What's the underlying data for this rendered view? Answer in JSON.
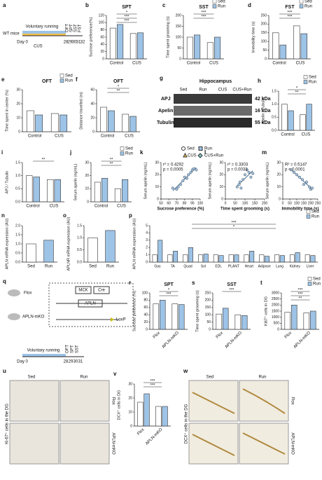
{
  "diagrams": {
    "a": {
      "panel": "a",
      "mice": "WT mice",
      "running": "Voluntary running",
      "day0": "Day 0",
      "cus": "CUS",
      "days": [
        "28",
        "29",
        "30",
        "31",
        "32"
      ],
      "tests": [
        "OFT",
        "SPT",
        "SST",
        "FST"
      ]
    },
    "g": {
      "panel": "g",
      "title": "Hippocampus",
      "groups": [
        "Sed",
        "Run",
        "CUS",
        "CUS+Run"
      ],
      "proteins": [
        "APJ",
        "Apelin",
        "Tubulin"
      ],
      "sizes": [
        "42 kDa",
        "16 kDa",
        "55 kDa"
      ]
    },
    "legend_klm": {
      "items": [
        "Sed",
        "Run",
        "CUS",
        "CUS+Run"
      ]
    },
    "q": {
      "panel": "q",
      "flox": "Flox",
      "ko": "APLN-mKO",
      "mck": "MCK",
      "cre": "Cre",
      "apln": "APLN",
      "loxp": "LoxP",
      "day0": "Day 0",
      "running": "Voluntary running",
      "days": [
        "28",
        "29",
        "30",
        "31"
      ],
      "tests": [
        "OFT",
        "SPT",
        "SST"
      ]
    },
    "u": {
      "panel": "u",
      "sed": "Sed",
      "run": "Run",
      "ylabel": "Ki-67⁺ cells in the DG",
      "flox": "Flox",
      "ko": "APLN-mKO"
    },
    "w": {
      "panel": "w",
      "sed": "Sed",
      "run": "Run",
      "ylabel": "DCX⁺ cells in the DG",
      "flox": "Flox",
      "ko": "APLN-mKO"
    }
  },
  "chart_data": [
    {
      "type": "bar",
      "panel": "b",
      "title": "SPT",
      "ylabel": "Sucrose preference(%)",
      "categories": [
        "Control",
        "CUS"
      ],
      "series": [
        {
          "name": "Sed",
          "color": "#ffffff",
          "values": [
            85,
            70
          ]
        },
        {
          "name": "Run",
          "color": "#9dc3e6",
          "values": [
            95,
            72
          ]
        }
      ],
      "ylim": [
        0,
        120
      ],
      "yticks": [
        0,
        20,
        40,
        60,
        80,
        100,
        120
      ],
      "significance": [
        "*",
        "***",
        "***"
      ]
    },
    {
      "type": "bar",
      "panel": "c",
      "title": "SST",
      "ylabel": "Time spent grooming (s)",
      "categories": [
        "Control",
        "CUS"
      ],
      "series": [
        {
          "name": "Sed",
          "color": "#ffffff",
          "values": [
            100,
            75
          ]
        },
        {
          "name": "Run",
          "color": "#9dc3e6",
          "values": [
            110,
            100
          ]
        }
      ],
      "ylim": [
        0,
        200
      ],
      "yticks": [
        0,
        50,
        100,
        150,
        200
      ],
      "significance": [
        "***",
        "***"
      ],
      "legend": true
    },
    {
      "type": "bar",
      "panel": "d",
      "title": "FST",
      "ylabel": "Immobility time (s)",
      "categories": [
        "Control",
        "CUS"
      ],
      "series": [
        {
          "name": "Sed",
          "color": "#ffffff",
          "values": [
            150,
            190
          ]
        },
        {
          "name": "Run",
          "color": "#9dc3e6",
          "values": [
            80,
            145
          ]
        }
      ],
      "ylim": [
        0,
        250
      ],
      "yticks": [
        0,
        50,
        100,
        150,
        200,
        250
      ],
      "significance": [
        "***",
        "***"
      ],
      "legend": true
    },
    {
      "type": "bar",
      "panel": "e",
      "title": "OFT",
      "ylabel": "Time spent in center (%)",
      "categories": [
        "Control",
        "CUS"
      ],
      "series": [
        {
          "name": "Sed",
          "color": "#ffffff",
          "values": [
            15,
            13
          ]
        },
        {
          "name": "Run",
          "color": "#9dc3e6",
          "values": [
            12,
            12
          ]
        }
      ],
      "ylim": [
        0,
        30
      ],
      "yticks": [
        0,
        10,
        20,
        30
      ],
      "significance": [],
      "legend": true
    },
    {
      "type": "bar",
      "panel": "f",
      "title": "OFT",
      "ylabel": "Distance travelled (m)",
      "categories": [
        "Control",
        "CUS"
      ],
      "series": [
        {
          "name": "Sed",
          "color": "#ffffff",
          "values": [
            35,
            25
          ]
        },
        {
          "name": "Run",
          "color": "#9dc3e6",
          "values": [
            30,
            22
          ]
        }
      ],
      "ylim": [
        0,
        60
      ],
      "yticks": [
        0,
        20,
        40,
        60
      ],
      "significance": [
        "*",
        "**"
      ]
    },
    {
      "type": "bar",
      "panel": "h",
      "ylabel": "Apelin / Tubulin",
      "categories": [
        "Control",
        "CUS"
      ],
      "series": [
        {
          "name": "Sed",
          "color": "#ffffff",
          "values": [
            1.0,
            0.6
          ]
        },
        {
          "name": "Run",
          "color": "#9dc3e6",
          "values": [
            0.75,
            1.0
          ]
        }
      ],
      "ylim": [
        0,
        1.5
      ],
      "yticks": [
        {
          "value": 0,
          "label": "0.0"
        },
        {
          "value": 0.5,
          "label": "0.5"
        },
        {
          "value": 1,
          "label": "1.0"
        },
        {
          "value": 1.5,
          "label": "1.5"
        }
      ],
      "significance": [
        "*",
        "**"
      ],
      "legend": true
    },
    {
      "type": "bar",
      "panel": "i",
      "ylabel": "APJ / Tubulin",
      "categories": [
        "Control",
        "CUS"
      ],
      "series": [
        {
          "name": "Sed",
          "color": "#ffffff",
          "values": [
            1.0,
            0.85
          ]
        },
        {
          "name": "Run",
          "color": "#9dc3e6",
          "values": [
            0.95,
            0.85
          ]
        }
      ],
      "ylim": [
        0,
        1.5
      ],
      "yticks": [
        {
          "value": 0,
          "label": "0.0"
        },
        {
          "value": 0.5,
          "label": "0.5"
        },
        {
          "value": 1,
          "label": "1.0"
        },
        {
          "value": 1.5,
          "label": "1.5"
        }
      ],
      "significance": [
        "**"
      ]
    },
    {
      "type": "bar",
      "panel": "j",
      "ylabel": "Serum apelin (ng/mL)",
      "categories": [
        "Control",
        "CUS"
      ],
      "series": [
        {
          "name": "Sed",
          "color": "#ffffff",
          "values": [
            15,
            10
          ]
        },
        {
          "name": "Run",
          "color": "#9dc3e6",
          "values": [
            18,
            17
          ]
        }
      ],
      "ylim": [
        0,
        30
      ],
      "yticks": [
        0,
        10,
        20,
        30
      ],
      "significance": [
        "**",
        "**"
      ],
      "legend": true
    },
    {
      "type": "scatter",
      "panel": "k",
      "ylabel": "Serum apelin (ng/mL)",
      "xlabel": "Sucrose preference (%)",
      "x": [
        85,
        88,
        90,
        80,
        92,
        75,
        70,
        72,
        78,
        83,
        65,
        95
      ],
      "values": [
        20,
        22,
        24,
        18,
        25,
        12,
        8,
        10,
        15,
        17,
        9,
        24
      ],
      "xlim": [
        50,
        100
      ],
      "xticks": [
        50,
        60,
        70,
        80,
        90,
        100
      ],
      "ylim": [
        0,
        30
      ],
      "yticks": [
        0,
        10,
        20,
        30
      ],
      "annotations": [
        "r² = 0.4292",
        "p = 0.0005"
      ]
    },
    {
      "type": "scatter",
      "panel": "l",
      "ylabel": "Serum apelin (ng/mL)",
      "xlabel": "Time spent grooming (s)",
      "x": [
        100,
        120,
        90,
        110,
        60,
        70,
        80,
        130,
        140,
        75
      ],
      "values": [
        20,
        22,
        16,
        24,
        10,
        12,
        9,
        18,
        21,
        14
      ],
      "xlim": [
        0,
        200
      ],
      "xticks": [
        0,
        50,
        100,
        150,
        200
      ],
      "ylim": [
        0,
        30
      ],
      "yticks": [
        0,
        10,
        20,
        30
      ],
      "annotations": [
        "r² = 0.3303",
        "p = 0.0033"
      ]
    },
    {
      "type": "scatter",
      "panel": "m",
      "ylabel": "Serum apelin (ng/mL)",
      "xlabel": "Immobility time (s)",
      "x": [
        80,
        60,
        100,
        140,
        190,
        200,
        150,
        170,
        120,
        210
      ],
      "values": [
        22,
        24,
        20,
        16,
        10,
        8,
        12,
        14,
        18,
        9
      ],
      "xlim": [
        0,
        250
      ],
      "xticks": [
        0,
        50,
        100,
        150,
        200,
        250
      ],
      "ylim": [
        0,
        30
      ],
      "yticks": [
        0,
        10,
        20,
        30
      ],
      "annotations": [
        "R² = 0.5147",
        "p < 0.0001"
      ]
    },
    {
      "type": "bar",
      "panel": "n",
      "ylabel": "APLN mRNA expression (AU)",
      "categories": [
        "Sed",
        "Run"
      ],
      "values": [
        1.0,
        1.2
      ],
      "colors": [
        "#ffffff",
        "#9dc3e6"
      ],
      "ylim": [
        0,
        2
      ],
      "yticks": [
        {
          "value": 0,
          "label": "0.0"
        },
        {
          "value": 0.5,
          "label": "0.5"
        },
        {
          "value": 1,
          "label": "1.0"
        },
        {
          "value": 1.5,
          "label": "1.5"
        },
        {
          "value": 2,
          "label": "2.0"
        }
      ]
    },
    {
      "type": "bar",
      "panel": "o",
      "ylabel": "APLNR mRNA expression (AU)",
      "categories": [
        "Sed",
        "Run"
      ],
      "values": [
        1.0,
        1.3
      ],
      "colors": [
        "#ffffff",
        "#9dc3e6"
      ],
      "ylim": [
        0,
        1.5
      ],
      "yticks": [
        {
          "value": 0,
          "label": "0.0"
        },
        {
          "value": 0.5,
          "label": "0.5"
        },
        {
          "value": 1,
          "label": "1.0"
        },
        {
          "value": 1.5,
          "label": "1.5"
        }
      ]
    },
    {
      "type": "bar",
      "panel": "p",
      "ylabel": "APLN mRNA expression (AU)",
      "categories": [
        "Gas",
        "TA",
        "Quad",
        "Sol",
        "EDL",
        "PLANT",
        "Heart",
        "Adipose",
        "Lung",
        "Kidney",
        "Liver"
      ],
      "series": [
        {
          "name": "Sed",
          "color": "#ffffff",
          "values": [
            1,
            1,
            1,
            1,
            1,
            1,
            1,
            1,
            1,
            1,
            1
          ]
        },
        {
          "name": "Run",
          "color": "#9dc3e6",
          "values": [
            3.0,
            1.5,
            2.0,
            1.1,
            0.9,
            1.0,
            1.5,
            0.8,
            0.9,
            1.3,
            0.9
          ]
        }
      ],
      "ylim": [
        0,
        5
      ],
      "yticks": [
        0,
        1,
        2,
        3,
        4,
        5
      ],
      "significance": [
        "***",
        "*"
      ],
      "legend": true
    },
    {
      "type": "bar",
      "panel": "r",
      "title": "SPT",
      "ylabel": "Sucrose preference (%)",
      "categories": [
        "Flox",
        "APLN-mKO"
      ],
      "series": [
        {
          "name": "Sed",
          "color": "#ffffff",
          "values": [
            70,
            70
          ]
        },
        {
          "name": "Run",
          "color": "#9dc3e6",
          "values": [
            80,
            68
          ]
        }
      ],
      "ylim": [
        0,
        100
      ],
      "yticks": [
        0,
        20,
        40,
        60,
        80,
        100
      ],
      "significance": [
        "*",
        "***"
      ]
    },
    {
      "type": "bar",
      "panel": "s",
      "title": "SST",
      "ylabel": "Time spent grooming (s)",
      "categories": [
        "Flox",
        "APLN-mKO"
      ],
      "series": [
        {
          "name": "Sed",
          "color": "#ffffff",
          "values": [
            105,
            100
          ]
        },
        {
          "name": "Run",
          "color": "#9dc3e6",
          "values": [
            145,
            95
          ]
        }
      ],
      "ylim": [
        0,
        250
      ],
      "yticks": [
        0,
        50,
        100,
        150,
        200,
        250
      ],
      "significance": [
        "***"
      ]
    },
    {
      "type": "bar",
      "panel": "t",
      "ylabel": "Ki67⁺ cells in DG",
      "categories": [
        "Flox",
        "APLN-mKO"
      ],
      "series": [
        {
          "name": "Sed",
          "color": "#ffffff",
          "values": [
            1400,
            1350
          ]
        },
        {
          "name": "Run",
          "color": "#9dc3e6",
          "values": [
            2000,
            1500
          ]
        }
      ],
      "ylim": [
        0,
        3000
      ],
      "yticks": [
        0,
        500,
        1000,
        1500,
        2000,
        2500,
        3000
      ],
      "significance": [
        "***",
        "***",
        "**"
      ],
      "legend": true
    },
    {
      "type": "bar",
      "panel": "v",
      "ylabel": "DCX⁺ cells in DG",
      "categories": [
        "Flox",
        "APLN-mKO"
      ],
      "series": [
        {
          "name": "Sed",
          "color": "#ffffff",
          "values": [
            17,
            14
          ]
        },
        {
          "name": "Run",
          "color": "#9dc3e6",
          "values": [
            23,
            14
          ]
        }
      ],
      "ylim": [
        0,
        30
      ],
      "yticks": [
        0,
        10,
        20,
        30
      ],
      "significance": [
        "***",
        "***"
      ]
    }
  ]
}
